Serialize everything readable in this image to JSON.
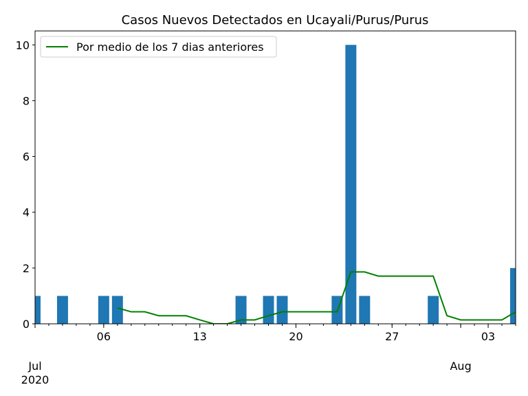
{
  "chart_data": {
    "type": "bar",
    "title": "Casos Nuevos Detectados en Ucayali/Purus/Purus",
    "x": [
      "2020-07-01",
      "2020-07-02",
      "2020-07-03",
      "2020-07-04",
      "2020-07-05",
      "2020-07-06",
      "2020-07-07",
      "2020-07-08",
      "2020-07-09",
      "2020-07-10",
      "2020-07-11",
      "2020-07-12",
      "2020-07-13",
      "2020-07-14",
      "2020-07-15",
      "2020-07-16",
      "2020-07-17",
      "2020-07-18",
      "2020-07-19",
      "2020-07-20",
      "2020-07-21",
      "2020-07-22",
      "2020-07-23",
      "2020-07-24",
      "2020-07-25",
      "2020-07-26",
      "2020-07-27",
      "2020-07-28",
      "2020-07-29",
      "2020-07-30",
      "2020-07-31",
      "2020-08-01",
      "2020-08-02",
      "2020-08-03",
      "2020-08-04",
      "2020-08-05"
    ],
    "values": [
      1,
      0,
      1,
      0,
      0,
      1,
      1,
      0,
      0,
      0,
      0,
      0,
      0,
      0,
      0,
      1,
      0,
      1,
      1,
      0,
      0,
      0,
      1,
      10,
      1,
      0,
      0,
      0,
      0,
      1,
      0,
      0,
      0,
      0,
      0,
      2
    ],
    "color": "#1f77b4",
    "series": [
      {
        "name": "Por medio de los 7 dias anteriores",
        "color": "#008000",
        "values": [
          null,
          null,
          null,
          null,
          null,
          null,
          0.57,
          0.43,
          0.43,
          0.29,
          0.29,
          0.29,
          0.14,
          0,
          0,
          0.14,
          0.14,
          0.29,
          0.43,
          0.43,
          0.43,
          0.43,
          0.43,
          1.86,
          1.86,
          1.71,
          1.71,
          1.71,
          1.71,
          1.71,
          0.29,
          0.14,
          0.14,
          0.14,
          0.14,
          0.43
        ]
      }
    ],
    "xlim": [
      "2020-07-01",
      "2020-08-05"
    ],
    "xticks": [
      {
        "value": "2020-07-06",
        "label": "06"
      },
      {
        "value": "2020-07-13",
        "label": "13"
      },
      {
        "value": "2020-07-20",
        "label": "20"
      },
      {
        "value": "2020-07-27",
        "label": "27"
      },
      {
        "value": "2020-08-03",
        "label": "03"
      }
    ],
    "xticks_month": [
      {
        "value": "2020-07-01",
        "label": "Jul\n2020"
      },
      {
        "value": "2020-08-01",
        "label": "Aug"
      }
    ],
    "ylim": [
      0,
      10.5
    ],
    "yticks": [
      0,
      2,
      4,
      6,
      8,
      10
    ],
    "legend": "upper left"
  }
}
